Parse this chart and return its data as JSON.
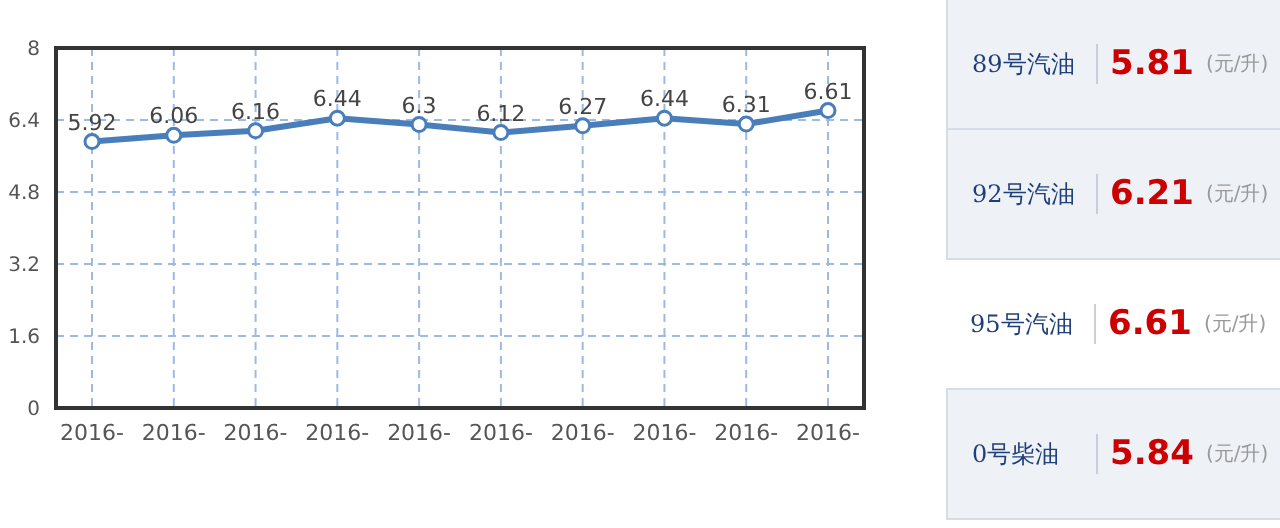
{
  "chart_data": [
    {
      "type": "line",
      "categories": [
        "2016-",
        "2016-",
        "2016-",
        "2016-",
        "2016-",
        "2016-",
        "2016-",
        "2016-",
        "2016-",
        "2016-"
      ],
      "series": [
        {
          "color": "#4a7ebb",
          "values": [
            5.92,
            6.06,
            6.16,
            6.44,
            6.3,
            6.12,
            6.27,
            6.44,
            6.31,
            6.61
          ]
        }
      ],
      "ylim": [
        0,
        8
      ],
      "yticks": [
        0,
        1.6,
        3.2,
        4.8,
        6.4,
        8
      ],
      "grid": true,
      "marker": "circle",
      "data_labels": true,
      "legend": false
    },
    {
      "type": "other",
      "annotations": [
        "89号汽油",
        "5.81",
        "(元/升)",
        "92号汽油",
        "6.21",
        "(元/升)",
        "95号汽油",
        "6.61",
        "(元/升)",
        "0号柴油",
        "5.84",
        "(元/升)"
      ]
    }
  ]
}
